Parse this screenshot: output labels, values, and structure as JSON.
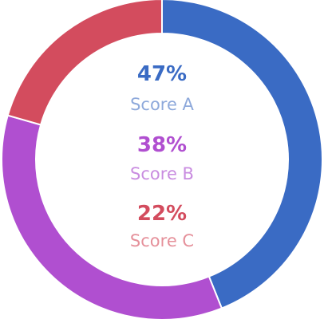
{
  "chart_data": {
    "type": "pie",
    "style": "donut",
    "series": [
      {
        "name": "Score A",
        "value_label": "47%",
        "value": 47,
        "color": "#3a6bc4",
        "label_color": "#8ea9db",
        "value_color": "#3a6bc4"
      },
      {
        "name": "Score B",
        "value_label": "38%",
        "value": 38,
        "color": "#b04fd0",
        "label_color": "#c98ce0",
        "value_color": "#b04fd0"
      },
      {
        "name": "Score C",
        "value_label": "22%",
        "value": 22,
        "color": "#d34c5e",
        "label_color": "#e5909a",
        "value_color": "#d34c5e"
      }
    ]
  }
}
